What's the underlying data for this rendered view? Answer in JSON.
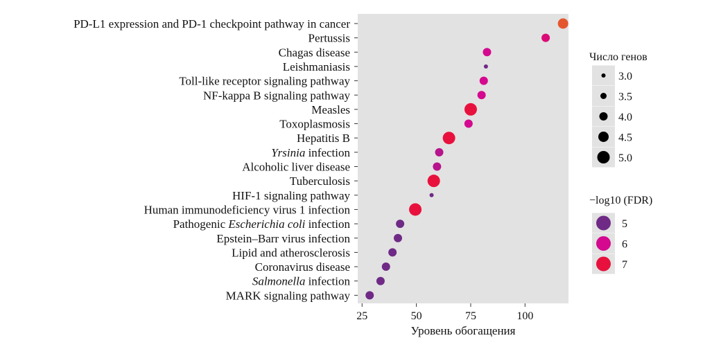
{
  "chart_data": {
    "type": "scatter",
    "title": "",
    "xlabel": "Уровень обогащения",
    "ylabel": "",
    "xlim": [
      23,
      120
    ],
    "xticks": [
      25,
      50,
      75,
      100
    ],
    "grid": false,
    "points": [
      {
        "pathway": "PD-L1 expression and PD-1 checkpoint pathway in cancer",
        "x": 117.5,
        "genes": 4.5,
        "neglog10_fdr": 7.6
      },
      {
        "pathway": "Pertussis",
        "x": 109.5,
        "genes": 4.0,
        "neglog10_fdr": 6.3
      },
      {
        "pathway": "Chagas disease",
        "x": 82.5,
        "genes": 4.0,
        "neglog10_fdr": 6.0
      },
      {
        "pathway": "Leishmaniasis",
        "x": 82.0,
        "genes": 3.0,
        "neglog10_fdr": 5.0
      },
      {
        "pathway": "Toll-like receptor signaling pathway",
        "x": 81.0,
        "genes": 4.0,
        "neglog10_fdr": 6.0
      },
      {
        "pathway": "NF-kappa B signaling pathway",
        "x": 80.0,
        "genes": 4.0,
        "neglog10_fdr": 6.0
      },
      {
        "pathway": "Measles",
        "x": 75.0,
        "genes": 5.0,
        "neglog10_fdr": 7.0
      },
      {
        "pathway": "Toxoplasmosis",
        "x": 74.0,
        "genes": 4.0,
        "neglog10_fdr": 6.0
      },
      {
        "pathway": "Hepatitis B",
        "x": 65.0,
        "genes": 5.0,
        "neglog10_fdr": 7.0
      },
      {
        "pathway": "Yrsinia infection",
        "italic_prefix": "Yrsinia",
        "rest": " infection",
        "x": 60.5,
        "genes": 4.0,
        "neglog10_fdr": 5.7
      },
      {
        "pathway": "Alcoholic liver disease",
        "x": 59.5,
        "genes": 4.0,
        "neglog10_fdr": 5.7
      },
      {
        "pathway": "Tuberculosis",
        "x": 58.0,
        "genes": 5.0,
        "neglog10_fdr": 7.0
      },
      {
        "pathway": "HIF-1 signaling pathway",
        "x": 57.0,
        "genes": 3.0,
        "neglog10_fdr": 5.0
      },
      {
        "pathway": "Human immunodeficiency virus 1 infection",
        "x": 49.5,
        "genes": 5.0,
        "neglog10_fdr": 7.0
      },
      {
        "pathway": "Pathogenic Escherichia coli infection",
        "plain_prefix": "Pathogenic ",
        "italic_mid": "Escherichia coli",
        "rest": " infection",
        "x": 42.5,
        "genes": 4.0,
        "neglog10_fdr": 5.0
      },
      {
        "pathway": "Epstein–Barr virus infection",
        "x": 41.5,
        "genes": 4.0,
        "neglog10_fdr": 5.0
      },
      {
        "pathway": "Lipid and atherosclerosis",
        "x": 39.0,
        "genes": 4.0,
        "neglog10_fdr": 5.0
      },
      {
        "pathway": "Coronavirus disease",
        "x": 36.0,
        "genes": 4.0,
        "neglog10_fdr": 5.0
      },
      {
        "pathway": "Salmonella infection",
        "italic_prefix": "Salmonella",
        "rest": " infection",
        "x": 33.5,
        "genes": 4.0,
        "neglog10_fdr": 5.0
      },
      {
        "pathway": "MARK signaling pathway",
        "x": 28.5,
        "genes": 4.0,
        "neglog10_fdr": 5.0
      }
    ],
    "size_legend": {
      "title": "Число генов",
      "entries": [
        "3.0",
        "3.5",
        "4.0",
        "4.5",
        "5.0"
      ],
      "values": [
        3.0,
        3.5,
        4.0,
        4.5,
        5.0
      ]
    },
    "color_legend": {
      "title": "−log10 (FDR)",
      "entries": [
        "5",
        "6",
        "7"
      ],
      "values": [
        5,
        6,
        7
      ],
      "colors": [
        "#6f2a86",
        "#d4098f",
        "#e8113d"
      ]
    },
    "colors": {
      "panel": "#e2e2e2",
      "legend_key": "#e2e2e2",
      "high": "#e4572e"
    }
  }
}
